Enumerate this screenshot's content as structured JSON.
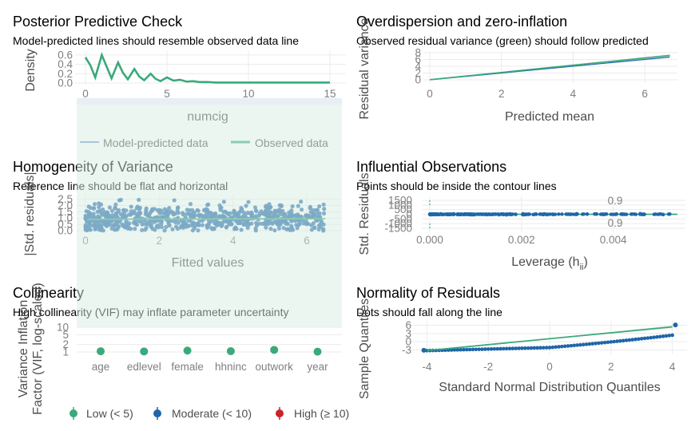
{
  "colors": {
    "green": "#3aaa7a",
    "blue": "#1f66a8",
    "red": "#cc2229",
    "line": "#3aaa7a",
    "band_low": "#d9eee4",
    "band_mod": "#d8e2f0",
    "band_high": "#f4d6d8"
  },
  "panels": {
    "ppc": {
      "title": "Posterior Predictive Check",
      "subtitle": "Model-predicted lines should resemble observed data line",
      "xlabel": "numcig",
      "ylabel": "Density",
      "xticks": [
        "0",
        "5",
        "10",
        "15"
      ],
      "yticks": [
        "0.0",
        "0.2",
        "0.4",
        "0.6"
      ],
      "legend": [
        "Model-predicted data",
        "Observed data"
      ]
    },
    "overdisp": {
      "title": "Overdispersion and zero-inflation",
      "subtitle": "Observed residual variance (green) should follow predicted",
      "xlabel": "Predicted mean",
      "ylabel": "Residual variance",
      "xticks": [
        "0",
        "2",
        "4",
        "6"
      ],
      "yticks": [
        "0",
        "2",
        "4",
        "6",
        "8"
      ]
    },
    "homog": {
      "title": "Homogeneity of Variance",
      "subtitle": "Reference line should be flat and horizontal",
      "xlabel": "Fitted values",
      "ylabel": "|Std. residuals|",
      "xticks": [
        "0",
        "2",
        "4",
        "6"
      ],
      "yticks": [
        "0.0",
        "0.5",
        "1.0",
        "1.5",
        "2.0",
        "2.5"
      ]
    },
    "influence": {
      "title": "Influential Observations",
      "subtitle": "Points should be inside the contour lines",
      "xlabel": "Leverage (hii)",
      "xlabel_main": "Leverage (h",
      "xlabel_sub": "ii",
      "xlabel_end": ")",
      "ylabel": "Std. Residuals",
      "xticks": [
        "0.000",
        "0.002",
        "0.004"
      ],
      "yticks": [
        "-1500",
        "-1000",
        "-500",
        "0",
        "500",
        "1000",
        "1500"
      ],
      "contour_labels": [
        "0.9",
        "0.9"
      ]
    },
    "collin": {
      "title": "Collinearity",
      "subtitle": "High collinearity (VIF) may inflate parameter uncertainty",
      "ylabel_line1": "Variance Inflation",
      "ylabel_line2": "Factor (VIF, log-scaled)",
      "yticks": [
        "1",
        "2",
        "5",
        "10"
      ],
      "legend": [
        "Low (< 5)",
        "Moderate (< 10)",
        "High (≥ 10)"
      ]
    },
    "normal": {
      "title": "Normality of Residuals",
      "subtitle": "Dots should fall along the line",
      "xlabel": "Standard Normal Distribution Quantiles",
      "ylabel": "Sample Quantiles",
      "xticks": [
        "-4",
        "-2",
        "0",
        "2",
        "4"
      ],
      "yticks": [
        "-3",
        "0",
        "3",
        "6"
      ]
    }
  },
  "chart_data": [
    {
      "type": "line",
      "title": "Posterior Predictive Check",
      "xlabel": "numcig",
      "ylabel": "Density",
      "xlim": [
        0,
        15
      ],
      "ylim": [
        0,
        0.65
      ],
      "series": [
        {
          "name": "Observed data",
          "x": [
            0,
            0.3,
            0.6,
            1.0,
            1.3,
            1.6,
            2.0,
            2.3,
            2.6,
            3.0,
            3.3,
            3.6,
            4.0,
            4.3,
            4.6,
            5.0,
            5.4,
            5.8,
            6.2,
            6.6,
            7.0,
            7.5,
            8,
            9,
            10,
            11,
            12,
            13,
            14,
            15
          ],
          "y": [
            0.55,
            0.38,
            0.12,
            0.6,
            0.35,
            0.1,
            0.44,
            0.22,
            0.08,
            0.3,
            0.14,
            0.06,
            0.2,
            0.09,
            0.04,
            0.12,
            0.05,
            0.07,
            0.03,
            0.04,
            0.02,
            0.02,
            0.01,
            0.01,
            0.01,
            0.01,
            0.01,
            0.01,
            0.01,
            0.01
          ]
        },
        {
          "name": "Model-predicted data",
          "x": [
            0,
            0.3,
            0.6,
            1.0,
            1.3,
            1.6,
            2.0,
            2.3,
            2.6,
            3.0,
            3.3,
            3.6,
            4.0,
            4.3,
            4.6,
            5.0,
            5.4,
            5.8,
            6.2,
            6.6,
            7.0,
            7.5,
            8,
            9,
            10,
            11,
            12,
            13,
            14,
            15
          ],
          "y": [
            0.54,
            0.37,
            0.13,
            0.59,
            0.34,
            0.11,
            0.43,
            0.21,
            0.09,
            0.29,
            0.14,
            0.06,
            0.19,
            0.09,
            0.04,
            0.11,
            0.05,
            0.06,
            0.03,
            0.03,
            0.02,
            0.02,
            0.01,
            0.01,
            0.01,
            0.01,
            0.01,
            0.01,
            0.01,
            0.01
          ]
        }
      ]
    },
    {
      "type": "line",
      "title": "Overdispersion and zero-inflation",
      "xlabel": "Predicted mean",
      "ylabel": "Residual variance",
      "xlim": [
        0,
        6.8
      ],
      "ylim": [
        0,
        8
      ],
      "series": [
        {
          "name": "Observed",
          "x": [
            0,
            6.7
          ],
          "y": [
            0.05,
            7.2
          ]
        },
        {
          "name": "Predicted",
          "x": [
            0,
            6.7
          ],
          "y": [
            0.0,
            6.7
          ]
        }
      ]
    },
    {
      "type": "scatter",
      "title": "Homogeneity of Variance",
      "xlabel": "Fitted values",
      "ylabel": "|Std. residuals|",
      "xlim": [
        0,
        6.8
      ],
      "ylim": [
        0,
        2.6
      ],
      "reference_line": {
        "x": [
          0.05,
          6.5
        ],
        "y": [
          0.9,
          0.95
        ]
      },
      "band": {
        "x": [
          0.05,
          6.5
        ],
        "lower": [
          0.1,
          0.1
        ],
        "upper": [
          2.4,
          2.2
        ]
      }
    },
    {
      "type": "scatter",
      "title": "Influential Observations",
      "xlabel": "Leverage (hii)",
      "ylabel": "Std. Residuals",
      "xlim": [
        0,
        0.0054
      ],
      "ylim": [
        -1500,
        1500
      ],
      "points_x_range": [
        0,
        0.0053
      ],
      "points_y": 0,
      "contour_level": 0.9
    },
    {
      "type": "scatter",
      "title": "Collinearity",
      "categories": [
        "age",
        "edlevel",
        "female",
        "hhninc",
        "outwork",
        "year"
      ],
      "values": [
        1.07,
        1.05,
        1.14,
        1.08,
        1.22,
        1.03
      ],
      "ylabel": "Variance Inflation Factor (VIF, log-scaled)",
      "ylim": [
        1,
        10
      ],
      "scale": "log"
    },
    {
      "type": "scatter",
      "title": "Normality of Residuals",
      "xlabel": "Standard Normal Distribution Quantiles",
      "ylabel": "Sample Quantiles",
      "xlim": [
        -4.4,
        4.4
      ],
      "ylim": [
        -4,
        7
      ],
      "reference_line": {
        "x": [
          -4,
          4
        ],
        "y": [
          -3.2,
          5.4
        ]
      }
    }
  ]
}
